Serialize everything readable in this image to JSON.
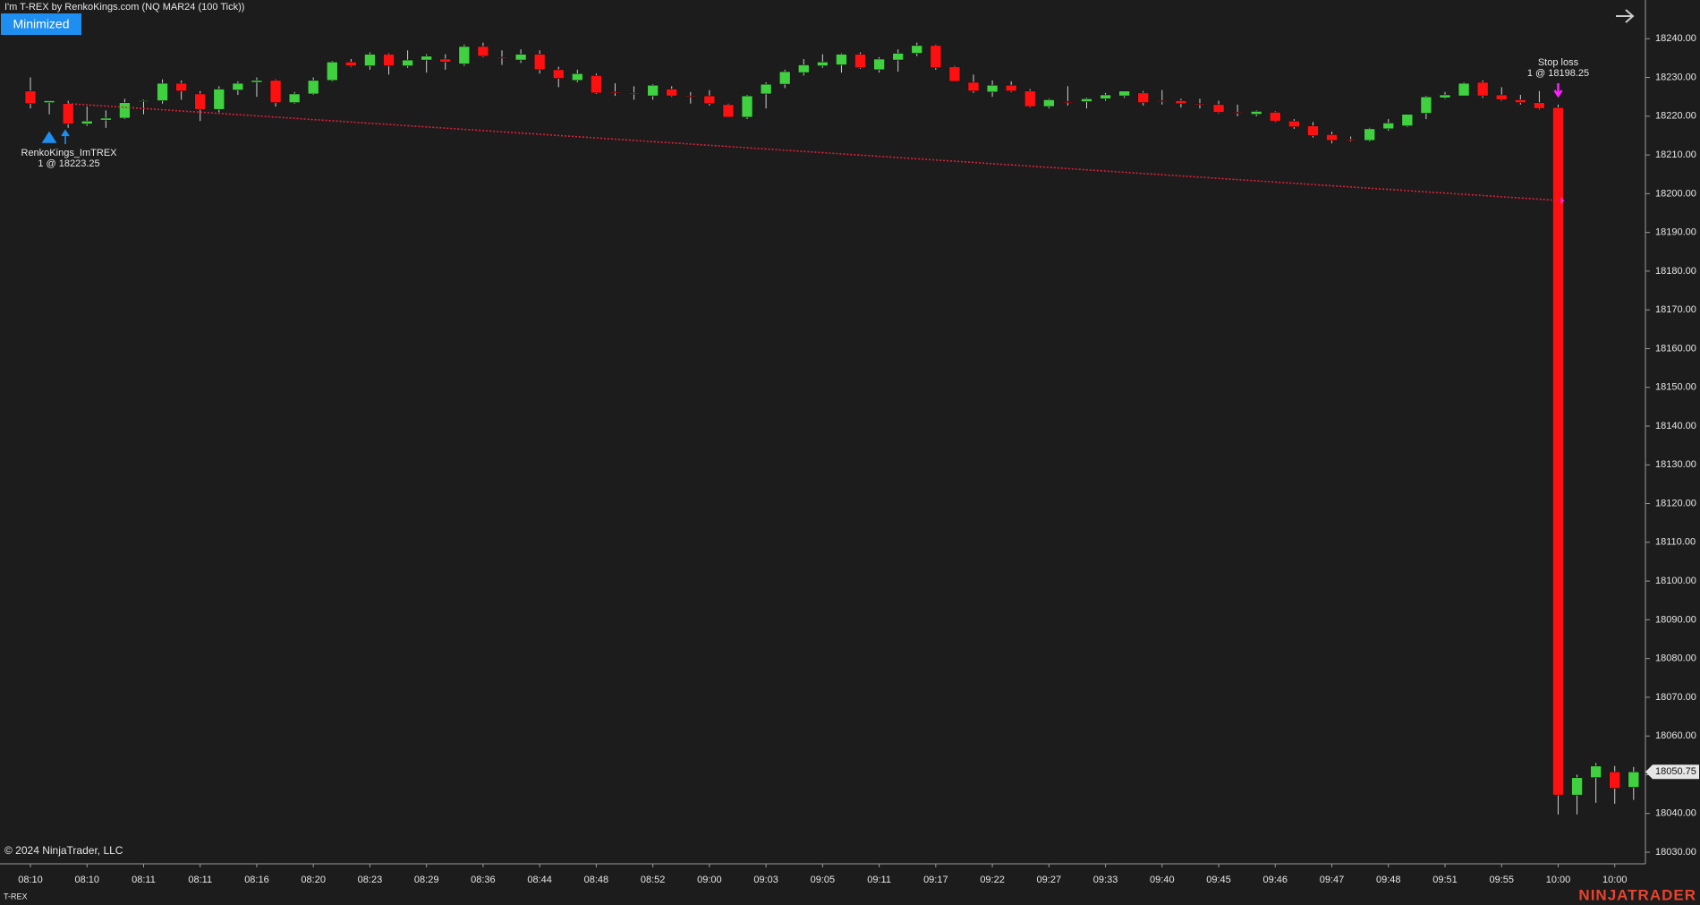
{
  "chart_data": {
    "type": "candlestick",
    "title": "I'm T-REX by RenkoKings.com (NQ MAR24 (100 Tick))",
    "categories": [
      "08:10",
      null,
      null,
      "08:10",
      null,
      null,
      "08:11",
      null,
      null,
      "08:11",
      null,
      null,
      "08:16",
      null,
      null,
      "08:20",
      null,
      null,
      "08:23",
      null,
      null,
      "08:29",
      null,
      null,
      "08:36",
      null,
      null,
      "08:44",
      null,
      null,
      "08:48",
      null,
      null,
      "08:52",
      null,
      null,
      "09:00",
      null,
      null,
      "09:03",
      null,
      null,
      "09:05",
      null,
      null,
      "09:11",
      null,
      null,
      "09:17",
      null,
      null,
      "09:22",
      null,
      null,
      "09:27",
      null,
      null,
      "09:33",
      null,
      null,
      "09:40",
      null,
      null,
      "09:45",
      null,
      null,
      "09:46",
      null,
      null,
      "09:47",
      null,
      null,
      "09:48",
      null,
      null,
      "09:51",
      null,
      null,
      "09:55",
      null,
      null,
      "10:00",
      null,
      null,
      "10:00",
      null
    ],
    "open": [
      18226.5,
      18223.5,
      18223.25,
      18218,
      18219,
      18219.5,
      18224,
      18224,
      18228.5,
      18225.75,
      18221.75,
      18226.75,
      18228.75,
      18229.25,
      18223.5,
      18225.75,
      18229.25,
      18234,
      18233,
      18236,
      18233,
      18234.5,
      18234.75,
      18233.5,
      18238,
      18235.25,
      18234.5,
      18236,
      18232,
      18229.25,
      18230.5,
      18226.25,
      18226,
      18225.25,
      18227,
      18225.25,
      18225.25,
      18223,
      18219.75,
      18225.75,
      18228.25,
      18231.25,
      18233,
      18233.25,
      18236,
      18232,
      18234.5,
      18236.25,
      18238.25,
      18232.75,
      18228.75,
      18226.25,
      18228,
      18226.5,
      18222.5,
      18223.75,
      18223.75,
      18224.5,
      18225.25,
      18226,
      18224,
      18224,
      18223.25,
      18223,
      18221,
      18220.5,
      18221,
      18218.75,
      18217.5,
      18215.25,
      18214,
      18213.75,
      18216.75,
      18217.5,
      18220.75,
      18224.75,
      18225.25,
      18228.75,
      18225.5,
      18224.25,
      18223.5,
      18222.25,
      18044.75,
      18049.25,
      18050.75,
      18046.75
    ],
    "high": [
      18230,
      18224,
      18224,
      18222.5,
      18221.5,
      18224.5,
      18224.25,
      18229.5,
      18229.25,
      18226.5,
      18227.75,
      18229,
      18230,
      18229.5,
      18226.25,
      18230,
      18234.25,
      18234.75,
      18236.5,
      18236.25,
      18237,
      18236,
      18236,
      18238.5,
      18239,
      18237,
      18237.25,
      18237,
      18232.75,
      18232,
      18231,
      18228.5,
      18227.75,
      18228.25,
      18227.75,
      18226.25,
      18226.75,
      18223.25,
      18225.5,
      18228.75,
      18232,
      18234.75,
      18236,
      18236.25,
      18236.5,
      18235.25,
      18237.25,
      18239,
      18238.5,
      18233,
      18230.75,
      18229.25,
      18229,
      18227,
      18224.5,
      18227.75,
      18224.75,
      18226,
      18226.5,
      18226.5,
      18226.75,
      18224.5,
      18224.5,
      18224,
      18223,
      18221.5,
      18221.25,
      18219.25,
      18218.5,
      18216,
      18214.75,
      18217,
      18219.25,
      18220.5,
      18225.25,
      18226.25,
      18228.75,
      18229.25,
      18227.5,
      18225.5,
      18226.5,
      18223,
      18050,
      18053,
      18052.25,
      18052
    ],
    "low": [
      18222,
      18220.5,
      18217,
      18217.5,
      18217,
      18219.25,
      18220.5,
      18223.25,
      18224.25,
      18218.75,
      18221,
      18225.5,
      18225,
      18222.5,
      18223.25,
      18225.5,
      18229,
      18232.75,
      18232,
      18230.75,
      18232.5,
      18231.25,
      18232,
      18233,
      18235.25,
      18233.25,
      18233.75,
      18231,
      18227.5,
      18228.75,
      18225.75,
      18225.25,
      18224.25,
      18224.25,
      18225,
      18223.25,
      18222.75,
      18219.75,
      18219.25,
      18222,
      18227.25,
      18230.5,
      18232.5,
      18231.25,
      18232.25,
      18231.25,
      18231.5,
      18235.5,
      18232,
      18229,
      18226,
      18225,
      18226.25,
      18222.25,
      18222,
      18222.75,
      18222,
      18224,
      18224.75,
      18222.75,
      18223,
      18222.25,
      18222,
      18220.75,
      18220,
      18220,
      18218.5,
      18216.75,
      18214.5,
      18213,
      18213.5,
      18213.5,
      18216.25,
      18217.25,
      18219.25,
      18224.5,
      18225.25,
      18224.75,
      18224,
      18223,
      18221.75,
      18039.75,
      18039.75,
      18042.75,
      18042.5,
      18043.5
    ],
    "close": [
      18223.25,
      18224,
      18218,
      18218.75,
      18219.5,
      18223.5,
      18224,
      18228.5,
      18226.5,
      18221.75,
      18227,
      18228.5,
      18229.25,
      18223.5,
      18225.75,
      18229.25,
      18234,
      18233,
      18236,
      18233,
      18234.5,
      18235.5,
      18234,
      18238,
      18235.5,
      18235,
      18236,
      18232,
      18229.75,
      18231,
      18226,
      18226,
      18225.75,
      18228,
      18225.25,
      18225,
      18223.25,
      18219.75,
      18225.25,
      18228.25,
      18231.5,
      18233.25,
      18234,
      18236,
      18232.5,
      18234.75,
      18236.25,
      18238.25,
      18232.5,
      18229,
      18226.5,
      18228,
      18226.5,
      18222.5,
      18224.25,
      18223.5,
      18224.5,
      18225.5,
      18226.5,
      18223.5,
      18223.75,
      18223.25,
      18223,
      18221,
      18220.75,
      18221.25,
      18218.75,
      18217.25,
      18215,
      18213.75,
      18213.75,
      18216.75,
      18218.25,
      18220.5,
      18225,
      18225.5,
      18228.5,
      18225.25,
      18224.25,
      18223.5,
      18222,
      18044.75,
      18049.25,
      18052.25,
      18046.5,
      18050.75
    ],
    "up_color": "#3fd13f",
    "down_color": "#ff1010",
    "ylim": [
      18027,
      18250
    ],
    "yticks": [
      {
        "value": 18030,
        "label": "18030.00"
      },
      {
        "value": 18040,
        "label": "18040.00"
      },
      {
        "value": 18050,
        "label": "18050.00"
      },
      {
        "value": 18060,
        "label": "18060.00"
      },
      {
        "value": 18070,
        "label": "18070.00"
      },
      {
        "value": 18080,
        "label": "18080.00"
      },
      {
        "value": 18090,
        "label": "18090.00"
      },
      {
        "value": 18100,
        "label": "18100.00"
      },
      {
        "value": 18110,
        "label": "18110.00"
      },
      {
        "value": 18120,
        "label": "18120.00"
      },
      {
        "value": 18130,
        "label": "18130.00"
      },
      {
        "value": 18140,
        "label": "18140.00"
      },
      {
        "value": 18150,
        "label": "18150.00"
      },
      {
        "value": 18160,
        "label": "18160.00"
      },
      {
        "value": 18170,
        "label": "18170.00"
      },
      {
        "value": 18180,
        "label": "18180.00"
      },
      {
        "value": 18190,
        "label": "18190.00"
      },
      {
        "value": 18200,
        "label": "18200.00"
      },
      {
        "value": 18210,
        "label": "18210.00"
      },
      {
        "value": 18220,
        "label": "18220.00"
      },
      {
        "value": 18230,
        "label": "18230.00"
      },
      {
        "value": 18240,
        "label": "18240.00"
      }
    ],
    "last_price": 18050.75,
    "entry": {
      "name": "RenkoKings_ImTREX",
      "label": "1 @ 18223.25",
      "price": 18223.25
    },
    "exit": {
      "name": "Stop loss",
      "label": "1 @ 18198.25",
      "price": 18198.25
    },
    "button": "Minimized",
    "copyright": "© 2024 NinjaTrader, LLC",
    "tab": "T-REX",
    "logo": "NINJATRADER"
  }
}
